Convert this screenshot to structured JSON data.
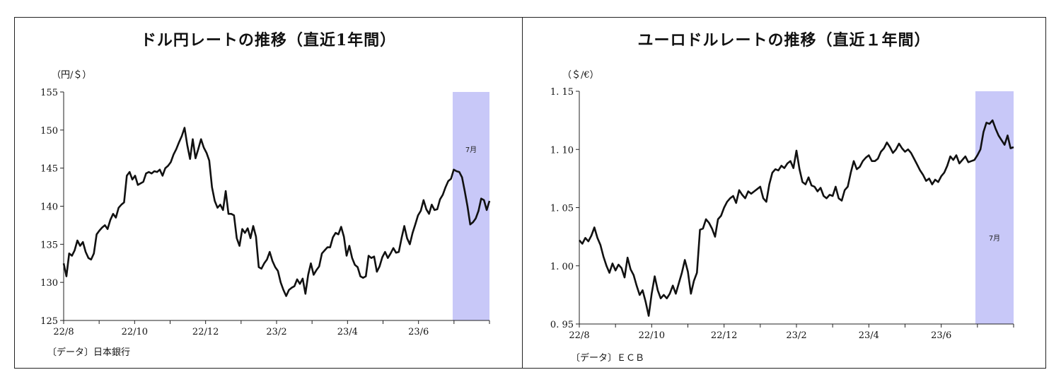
{
  "chart_data": [
    {
      "type": "line",
      "title": "ドル円レートの推移（直近1年間）",
      "unit_label": "（円/＄）",
      "source": "〔データ〕日本銀行",
      "highlight_label": "7月",
      "x_tick_labels": [
        "22/8",
        "22/10",
        "22/12",
        "23/2",
        "23/4",
        "23/6"
      ],
      "ylim": [
        125,
        155
      ],
      "yticks": [
        125,
        130,
        135,
        140,
        145,
        150,
        155
      ],
      "ytick_decimals": 0,
      "series": [
        {
          "values": [
            132.5,
            130.8,
            133.8,
            133.5,
            134.2,
            135.5,
            134.8,
            135.3,
            134.0,
            133.2,
            133.0,
            133.8,
            136.3,
            136.8,
            137.2,
            137.5,
            137.0,
            138.2,
            139.0,
            138.5,
            139.8,
            140.2,
            140.5,
            144.0,
            144.5,
            143.5,
            144.0,
            142.8,
            143.0,
            143.2,
            144.3,
            144.5,
            144.3,
            144.6,
            144.5,
            144.8,
            144.0,
            145.0,
            145.3,
            145.8,
            146.8,
            147.5,
            148.4,
            149.2,
            150.3,
            148.0,
            146.2,
            148.8,
            146.3,
            147.5,
            148.8,
            147.7,
            147.0,
            146.0,
            142.5,
            140.7,
            139.8,
            140.2,
            139.5,
            142.0,
            139.0,
            139.0,
            138.8,
            135.8,
            134.8,
            137.0,
            136.5,
            137.1,
            135.8,
            137.4,
            136.0,
            132.0,
            131.8,
            132.5,
            133.0,
            134.0,
            132.8,
            132.0,
            131.5,
            130.0,
            129.0,
            128.2,
            129.0,
            129.3,
            129.5,
            130.4,
            129.8,
            130.5,
            128.5,
            131.0,
            132.5,
            131.0,
            131.6,
            132.1,
            133.8,
            134.2,
            134.6,
            134.6,
            135.9,
            136.5,
            136.3,
            137.3,
            136.0,
            133.5,
            134.8,
            133.2,
            132.3,
            132.0,
            130.8,
            130.6,
            130.8,
            133.5,
            133.2,
            133.4,
            131.4,
            132.1,
            133.3,
            134.0,
            133.2,
            133.8,
            134.5,
            133.9,
            134.0,
            135.8,
            137.4,
            135.8,
            135.0,
            136.5,
            137.6,
            138.8,
            139.4,
            140.8,
            139.6,
            139.0,
            140.2,
            139.5,
            139.6,
            140.9,
            141.5,
            142.5,
            143.3,
            143.6,
            144.8,
            144.6,
            144.5,
            143.8,
            142.0,
            140.0,
            137.6,
            137.9,
            138.4,
            139.4,
            141.0,
            140.8,
            139.5,
            140.7
          ]
        }
      ]
    },
    {
      "type": "line",
      "title": "ユーロドルレートの推移（直近１年間）",
      "unit_label": "（＄/€）",
      "source": "〔データ〕ＥＣＢ",
      "highlight_label": "7月",
      "x_tick_labels": [
        "22/8",
        "22/10",
        "22/12",
        "23/2",
        "23/4",
        "23/6"
      ],
      "ylim": [
        0.95,
        1.15
      ],
      "yticks": [
        0.95,
        1.0,
        1.05,
        1.1,
        1.15
      ],
      "ytick_decimals": 2,
      "series": [
        {
          "values": [
            1.022,
            1.019,
            1.024,
            1.021,
            1.026,
            1.033,
            1.024,
            1.018,
            1.008,
            1.0,
            0.994,
            1.002,
            0.996,
            1.001,
            0.998,
            0.99,
            1.007,
            0.997,
            0.992,
            0.983,
            0.975,
            0.979,
            0.969,
            0.957,
            0.976,
            0.991,
            0.979,
            0.972,
            0.975,
            0.972,
            0.976,
            0.983,
            0.976,
            0.985,
            0.994,
            1.005,
            0.995,
            0.976,
            0.987,
            0.994,
            1.031,
            1.032,
            1.04,
            1.037,
            1.032,
            1.025,
            1.04,
            1.043,
            1.05,
            1.055,
            1.058,
            1.06,
            1.054,
            1.065,
            1.061,
            1.058,
            1.064,
            1.062,
            1.064,
            1.066,
            1.068,
            1.058,
            1.055,
            1.07,
            1.08,
            1.083,
            1.082,
            1.086,
            1.084,
            1.088,
            1.09,
            1.084,
            1.099,
            1.083,
            1.072,
            1.07,
            1.076,
            1.069,
            1.068,
            1.064,
            1.067,
            1.06,
            1.058,
            1.061,
            1.06,
            1.068,
            1.058,
            1.056,
            1.065,
            1.068,
            1.08,
            1.09,
            1.083,
            1.085,
            1.09,
            1.093,
            1.095,
            1.09,
            1.09,
            1.092,
            1.098,
            1.101,
            1.106,
            1.102,
            1.097,
            1.1,
            1.105,
            1.101,
            1.098,
            1.1,
            1.097,
            1.092,
            1.087,
            1.082,
            1.078,
            1.073,
            1.075,
            1.07,
            1.074,
            1.072,
            1.077,
            1.08,
            1.086,
            1.094,
            1.091,
            1.095,
            1.088,
            1.091,
            1.094,
            1.089,
            1.09,
            1.091,
            1.095,
            1.1,
            1.115,
            1.123,
            1.122,
            1.125,
            1.118,
            1.112,
            1.108,
            1.104,
            1.112,
            1.101,
            1.102
          ]
        }
      ]
    }
  ],
  "colors": {
    "line": "#111111",
    "highlight": "#c8c8f8",
    "axis": "#222222"
  }
}
